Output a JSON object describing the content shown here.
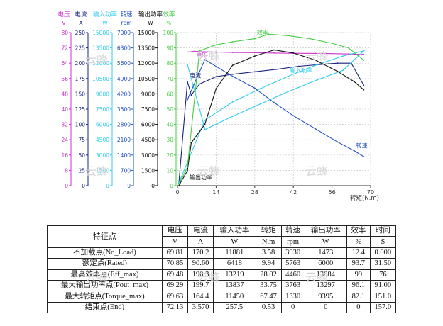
{
  "chart_data": {
    "type": "line",
    "xlabel": "转矩(N.m)",
    "xlim": [
      0,
      70
    ],
    "x_ticks": [
      "0",
      "14",
      "28",
      "42",
      "56",
      "70"
    ],
    "axes": [
      {
        "name": "电压",
        "unit": "V",
        "color": "#cc33cc",
        "ticks": [
          "0",
          "8",
          "16",
          "24",
          "32",
          "40",
          "48",
          "56",
          "64",
          "72",
          "80"
        ]
      },
      {
        "name": "电流",
        "unit": "A",
        "color": "#1a237e",
        "ticks": [
          "0",
          "25",
          "50",
          "75",
          "100",
          "125",
          "150",
          "175",
          "200",
          "225",
          "250"
        ]
      },
      {
        "name": "输入功率",
        "unit": "W",
        "color": "#33ccee",
        "ticks": [
          "0",
          "1500",
          "3000",
          "4500",
          "6000",
          "7500",
          "9000",
          "10500",
          "12000",
          "13500",
          "15000"
        ]
      },
      {
        "name": "转速",
        "unit": "rpm",
        "color": "#1f4fbf",
        "ticks": [
          "0",
          "700",
          "1400",
          "2100",
          "2800",
          "3500",
          "4200",
          "4900",
          "5600",
          "6300",
          "7000"
        ]
      },
      {
        "name": "输出功率",
        "unit": "W",
        "color": "#111111",
        "ticks": [
          "0",
          "1500",
          "3000",
          "4500",
          "6000",
          "7500",
          "9000",
          "10500",
          "12000",
          "13500",
          "15000"
        ]
      },
      {
        "name": "效率",
        "unit": "%",
        "color": "#44cc44",
        "ticks": [
          "0",
          "10",
          "20",
          "30",
          "40",
          "50",
          "60",
          "70",
          "80",
          "90",
          "100"
        ]
      }
    ],
    "series": [
      {
        "name": "电压",
        "color": "#cc33cc",
        "label": "电压",
        "x": [
          3.6,
          6,
          10,
          14,
          20,
          28,
          35,
          42,
          50,
          56,
          62,
          67.5
        ],
        "y": [
          69.8,
          70.2,
          70.0,
          69.8,
          69.6,
          69.5,
          69.3,
          69.2,
          69.1,
          69.0,
          68.8,
          68.6
        ]
      },
      {
        "name": "电流",
        "color": "#1a237e",
        "label": "电流",
        "x": [
          0.5,
          3.6,
          5,
          8,
          14,
          20,
          28,
          36,
          44,
          52,
          58,
          63,
          67.5
        ],
        "y": [
          3.6,
          170,
          148,
          166,
          178,
          182,
          186,
          190,
          195,
          198,
          200,
          200,
          164
        ]
      },
      {
        "name": "输入功率",
        "color": "#33ccee",
        "label": "输入功率",
        "x": [
          0.5,
          9.9,
          20,
          30,
          40,
          50,
          60,
          67.5,
          60,
          50,
          40,
          30,
          20,
          10,
          3.6
        ],
        "y": [
          258,
          6418,
          8200,
          9500,
          10700,
          11800,
          12700,
          13200,
          11300,
          10300,
          9200,
          8000,
          6800,
          5500,
          11881
        ]
      },
      {
        "name": "转速",
        "color": "#1f4fbf",
        "label": "转速",
        "x": [
          3.6,
          9.9,
          20,
          28,
          35,
          42,
          50,
          58,
          64,
          67.5
        ],
        "y": [
          3930,
          5763,
          5000,
          4460,
          3800,
          3200,
          2600,
          2000,
          1600,
          1330
        ]
      },
      {
        "name": "输出功率",
        "color": "#111111",
        "label": "输出功率",
        "x": [
          0.5,
          3.6,
          5,
          9.9,
          14,
          20,
          28,
          35,
          42,
          50,
          58,
          64,
          67.5
        ],
        "y": [
          0,
          1473,
          4200,
          6000,
          9500,
          11800,
          12700,
          13297,
          13000,
          12300,
          11200,
          10200,
          9395
        ]
      },
      {
        "name": "效率",
        "color": "#44cc44",
        "label": "效率",
        "x": [
          0.5,
          3.6,
          8,
          14,
          20,
          28,
          33,
          40,
          48,
          56,
          62,
          67.5
        ],
        "y": [
          1,
          12,
          88,
          92,
          94,
          96,
          99,
          98,
          96,
          93,
          90,
          82
        ]
      }
    ]
  },
  "table": {
    "feature_header": "特征点",
    "headers": [
      "电压",
      "电流",
      "输入功率",
      "转矩",
      "转速",
      "输出功率",
      "效率",
      "时间"
    ],
    "units": [
      "V",
      "A",
      "W",
      "N.m",
      "rpm",
      "W",
      "%",
      "S"
    ],
    "rows": [
      {
        "name": "不加载点(No_Load)",
        "values": [
          "69.81",
          "170.2",
          "11881",
          "3.58",
          "3930",
          "1473",
          "12.4",
          "0.000"
        ]
      },
      {
        "name": "额定点(Rated)",
        "values": [
          "70.85",
          "90.60",
          "6418",
          "9.94",
          "5763",
          "6000",
          "93.7",
          "31.50"
        ]
      },
      {
        "name": "最高效率点(Eff_max)",
        "values": [
          "69.48",
          "190.3",
          "13219",
          "28.02",
          "4460",
          "13084",
          "99",
          "76"
        ]
      },
      {
        "name": "最大输出功率点(Pout_max)",
        "values": [
          "69.29",
          "199.7",
          "13837",
          "33.75",
          "3763",
          "13297",
          "96.1",
          "91.00"
        ]
      },
      {
        "name": "最大转矩点(Torque_max)",
        "values": [
          "69.63",
          "164.4",
          "11450",
          "67.47",
          "1330",
          "9395",
          "82.1",
          "151.0"
        ]
      },
      {
        "name": "结束点(End)",
        "values": [
          "72.13",
          "3.570",
          "257.5",
          "0.53",
          "0",
          "0",
          "0",
          "157.0"
        ]
      }
    ]
  },
  "watermark": "云蜂"
}
